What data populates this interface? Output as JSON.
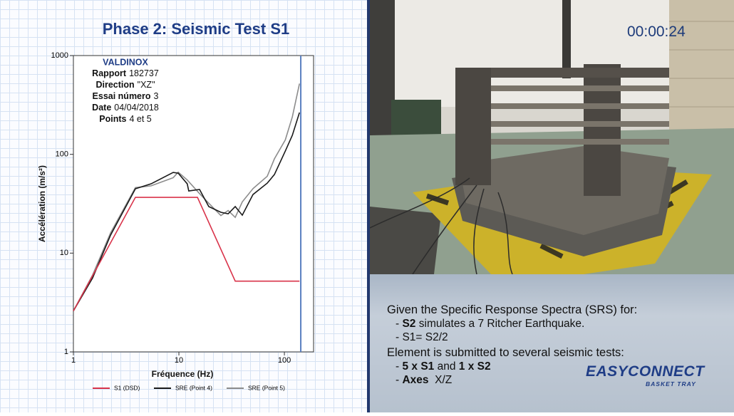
{
  "chart_data": {
    "type": "line",
    "title": "Phase 2: Seismic Test S1",
    "x_label": "Fréquence (Hz)",
    "y_label": "Accélération (m/s²)",
    "x_log": true,
    "y_log": true,
    "xlim": [
      1,
      189
    ],
    "ylim": [
      1,
      1000
    ],
    "xticks": [
      1,
      10,
      100
    ],
    "yticks": [
      1,
      10,
      100,
      1000
    ],
    "vline_x": 143,
    "vline_color": "#5a7fc0",
    "series": [
      {
        "name": "S1 (DSD)",
        "color": "#d9334a",
        "x": [
          1,
          3.87,
          15,
          34.2,
          139
        ],
        "values": [
          2.6,
          36.7,
          36.7,
          5.2,
          5.2
        ]
      },
      {
        "name": "SRE (Point 4)",
        "color": "#1a1a1a",
        "x": [
          1,
          1.52,
          2.25,
          3.87,
          5.45,
          8.83,
          9.85,
          12,
          12.4,
          15.7,
          19.2,
          25,
          29.3,
          34.2,
          39.9,
          50.4,
          68.8,
          80.4,
          102,
          119,
          139
        ],
        "values": [
          2.6,
          5.6,
          15.2,
          44.8,
          50.3,
          65.6,
          64.5,
          50.3,
          42.6,
          44.1,
          29.6,
          25.9,
          25,
          29.6,
          24.2,
          39.2,
          51.1,
          62.4,
          108,
          156,
          265
        ]
      },
      {
        "name": "SRE (Point 5)",
        "color": "#8c8c8c",
        "x": [
          1,
          1.52,
          2.25,
          3.87,
          5.45,
          8.83,
          9.85,
          12,
          15.7,
          19.2,
          25,
          29.3,
          34.2,
          39.9,
          50.4,
          68.8,
          80.4,
          102,
          119,
          139
        ],
        "values": [
          2.6,
          6,
          16,
          46,
          48,
          58,
          66,
          55,
          40,
          32,
          24,
          27,
          23,
          33,
          45,
          60,
          90,
          140,
          240,
          520
        ]
      }
    ],
    "info": {
      "company": "VALDINOX",
      "fields": [
        {
          "label": "Rapport",
          "value": "182737"
        },
        {
          "label": "Direction",
          "value": "\"XZ\""
        },
        {
          "label": "Essai número",
          "value": "3"
        },
        {
          "label": "Date",
          "value": "04/04/2018"
        },
        {
          "label": "Points",
          "value": "4 et 5"
        }
      ]
    }
  },
  "timer": "00:00:24",
  "panel": {
    "lines": [
      [
        {
          "text": "Given the Specific Response Spectra (SRS) for:",
          "bold": false
        }
      ],
      [
        {
          "text": "- ",
          "bold": false
        },
        {
          "text": "S2",
          "bold": true
        },
        {
          "text": " simulates a 7 Ritcher Earthquake.",
          "bold": false
        }
      ],
      [
        {
          "text": "- S1= S2/2",
          "bold": false
        }
      ],
      [
        {
          "text": "Element is submitted to several seismic tests:",
          "bold": false
        }
      ],
      [
        {
          "text": "- ",
          "bold": false
        },
        {
          "text": "5 x S1",
          "bold": true
        },
        {
          "text": " and ",
          "bold": false
        },
        {
          "text": "1 x S2",
          "bold": true
        }
      ],
      [
        {
          "text": "- ",
          "bold": false
        },
        {
          "text": "Axes",
          "bold": true
        },
        {
          "text": "  X/Z",
          "bold": false
        }
      ]
    ]
  },
  "logo": {
    "brand": "EASYCONNECT",
    "tagline": "BASKET TRAY"
  }
}
